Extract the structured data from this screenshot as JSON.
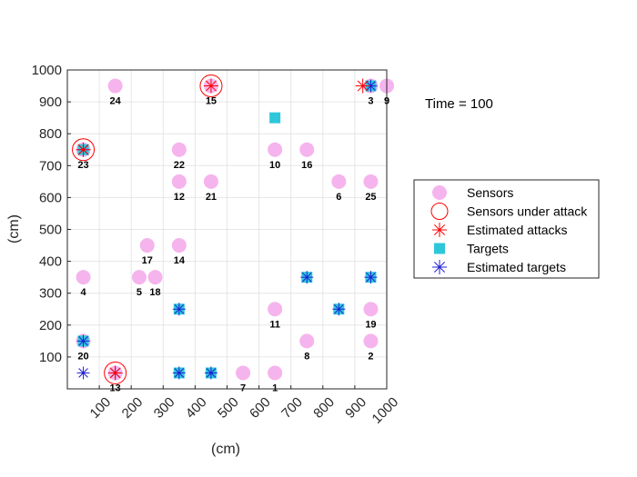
{
  "chart_data": {
    "type": "scatter",
    "xlabel": "(cm)",
    "ylabel": "(cm)",
    "xlim": [
      0,
      1000
    ],
    "ylim": [
      0,
      1000
    ],
    "xticks": [
      "100",
      "200",
      "300",
      "400",
      "500",
      "600",
      "700",
      "800",
      "900",
      "1000"
    ],
    "yticks": [
      "100",
      "200",
      "300",
      "400",
      "500",
      "600",
      "700",
      "800",
      "900",
      "1000"
    ],
    "grid": true,
    "legend_position": "right",
    "annotation": "Time = 100",
    "colors": {
      "sensor": "#f5b4ee",
      "attack_circle": "#ff0000",
      "estimated_attack": "#ff0000",
      "target": "#2ec7d9",
      "estimated_target": "#1f1fd6"
    },
    "legend": [
      {
        "key": "sensors",
        "label": "Sensors"
      },
      {
        "key": "attacked",
        "label": "Sensors under attack"
      },
      {
        "key": "est_attacks",
        "label": "Estimated attacks"
      },
      {
        "key": "targets",
        "label": "Targets"
      },
      {
        "key": "est_targets",
        "label": "Estimated targets"
      }
    ],
    "sensors": [
      {
        "id": "1",
        "x": 650,
        "y": 50
      },
      {
        "id": "2",
        "x": 950,
        "y": 150
      },
      {
        "id": "3",
        "x": 950,
        "y": 950
      },
      {
        "id": "4",
        "x": 50,
        "y": 350
      },
      {
        "id": "5",
        "x": 225,
        "y": 350
      },
      {
        "id": "6",
        "x": 850,
        "y": 650
      },
      {
        "id": "7",
        "x": 550,
        "y": 50
      },
      {
        "id": "8",
        "x": 750,
        "y": 150
      },
      {
        "id": "9",
        "x": 1000,
        "y": 950
      },
      {
        "id": "10",
        "x": 650,
        "y": 750
      },
      {
        "id": "11",
        "x": 650,
        "y": 250
      },
      {
        "id": "12",
        "x": 350,
        "y": 650
      },
      {
        "id": "13",
        "x": 150,
        "y": 50
      },
      {
        "id": "14",
        "x": 350,
        "y": 450
      },
      {
        "id": "15",
        "x": 450,
        "y": 950
      },
      {
        "id": "16",
        "x": 750,
        "y": 750
      },
      {
        "id": "17",
        "x": 250,
        "y": 450
      },
      {
        "id": "18",
        "x": 275,
        "y": 350
      },
      {
        "id": "19",
        "x": 950,
        "y": 250
      },
      {
        "id": "20",
        "x": 50,
        "y": 150
      },
      {
        "id": "21",
        "x": 450,
        "y": 650
      },
      {
        "id": "22",
        "x": 350,
        "y": 750
      },
      {
        "id": "23",
        "x": 50,
        "y": 750
      },
      {
        "id": "24",
        "x": 150,
        "y": 950
      },
      {
        "id": "25",
        "x": 950,
        "y": 650
      }
    ],
    "sensors_under_attack": [
      {
        "x": 50,
        "y": 750
      },
      {
        "x": 450,
        "y": 950
      },
      {
        "x": 150,
        "y": 50
      }
    ],
    "estimated_attacks": [
      {
        "x": 50,
        "y": 750
      },
      {
        "x": 450,
        "y": 950
      },
      {
        "x": 150,
        "y": 50
      },
      {
        "x": 925,
        "y": 950
      }
    ],
    "targets": [
      {
        "x": 650,
        "y": 850
      },
      {
        "x": 950,
        "y": 950
      },
      {
        "x": 50,
        "y": 750
      },
      {
        "x": 750,
        "y": 350
      },
      {
        "x": 950,
        "y": 350
      },
      {
        "x": 350,
        "y": 250
      },
      {
        "x": 850,
        "y": 250
      },
      {
        "x": 50,
        "y": 150
      },
      {
        "x": 350,
        "y": 50
      },
      {
        "x": 450,
        "y": 50
      }
    ],
    "estimated_targets": [
      {
        "x": 950,
        "y": 950
      },
      {
        "x": 50,
        "y": 750
      },
      {
        "x": 750,
        "y": 350
      },
      {
        "x": 950,
        "y": 350
      },
      {
        "x": 350,
        "y": 250
      },
      {
        "x": 850,
        "y": 250
      },
      {
        "x": 50,
        "y": 150
      },
      {
        "x": 350,
        "y": 50
      },
      {
        "x": 450,
        "y": 50
      },
      {
        "x": 50,
        "y": 50
      },
      {
        "x": 150,
        "y": 50
      }
    ]
  }
}
